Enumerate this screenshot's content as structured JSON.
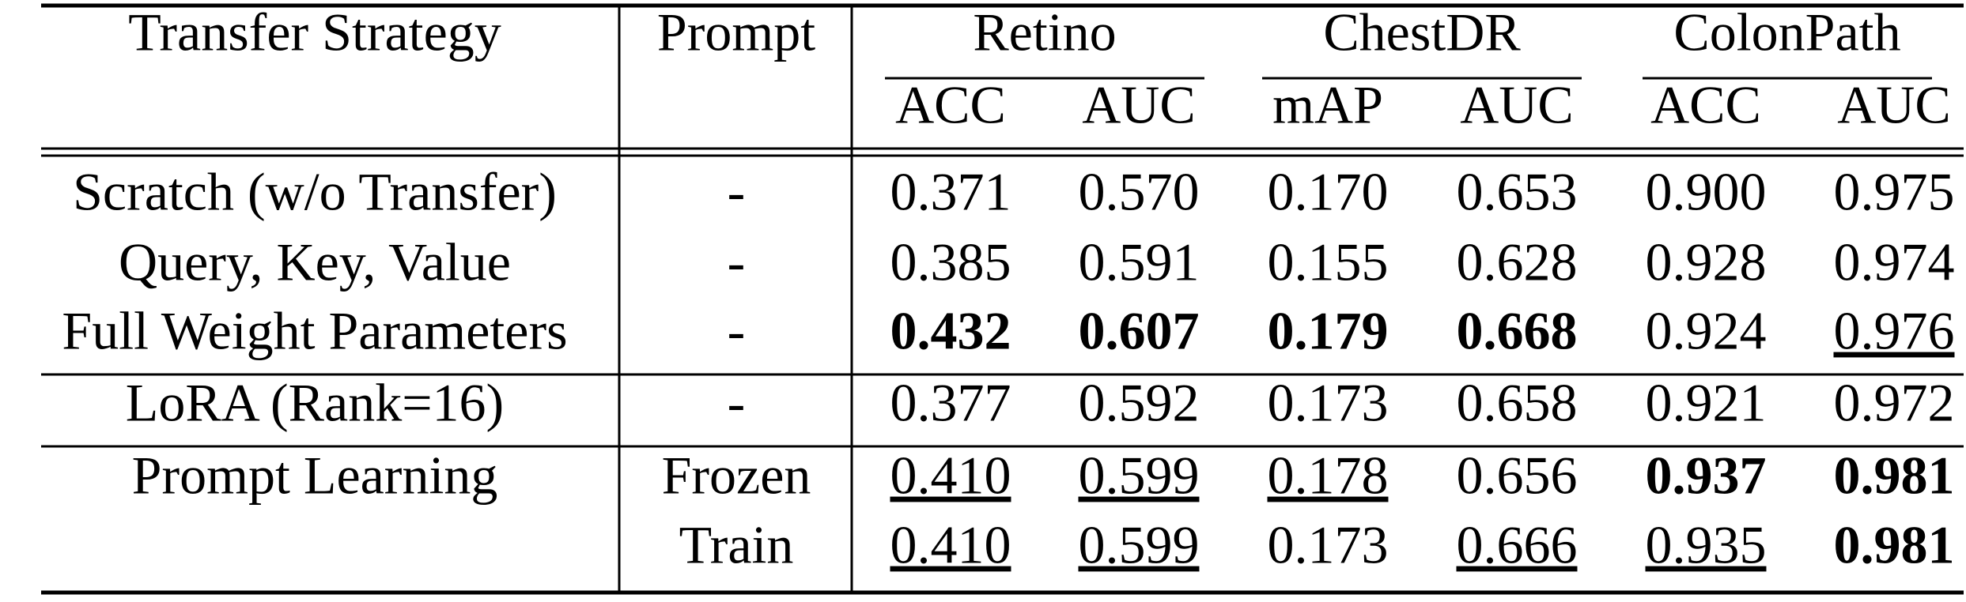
{
  "table": {
    "columns": [
      "Transfer Strategy",
      "Prompt"
    ],
    "groups": [
      {
        "name": "Retino",
        "metrics": [
          "ACC",
          "AUC"
        ]
      },
      {
        "name": "ChestDR",
        "metrics": [
          "mAP",
          "AUC"
        ]
      },
      {
        "name": "ColonPath",
        "metrics": [
          "ACC",
          "AUC"
        ]
      }
    ],
    "sections": [
      [
        {
          "strategy": "Scratch (w/o Transfer)",
          "prompt": "-",
          "values": [
            {
              "text": "0.371"
            },
            {
              "text": "0.570"
            },
            {
              "text": "0.170"
            },
            {
              "text": "0.653"
            },
            {
              "text": "0.900"
            },
            {
              "text": "0.975"
            }
          ]
        },
        {
          "strategy": "Query, Key, Value",
          "prompt": "-",
          "values": [
            {
              "text": "0.385"
            },
            {
              "text": "0.591"
            },
            {
              "text": "0.155"
            },
            {
              "text": "0.628"
            },
            {
              "text": "0.928"
            },
            {
              "text": "0.974"
            }
          ]
        },
        {
          "strategy": "Full Weight Parameters",
          "prompt": "-",
          "values": [
            {
              "text": "0.432",
              "style": "bold"
            },
            {
              "text": "0.607",
              "style": "bold"
            },
            {
              "text": "0.179",
              "style": "bold"
            },
            {
              "text": "0.668",
              "style": "bold"
            },
            {
              "text": "0.924"
            },
            {
              "text": "0.976",
              "style": "underline"
            }
          ]
        }
      ],
      [
        {
          "strategy": "LoRA (Rank=16)",
          "prompt": "-",
          "values": [
            {
              "text": "0.377"
            },
            {
              "text": "0.592"
            },
            {
              "text": "0.173"
            },
            {
              "text": "0.658"
            },
            {
              "text": "0.921"
            },
            {
              "text": "0.972"
            }
          ]
        }
      ],
      [
        {
          "strategy": "Prompt Learning",
          "prompt": "Frozen",
          "values": [
            {
              "text": "0.410",
              "style": "underline"
            },
            {
              "text": "0.599",
              "style": "underline"
            },
            {
              "text": "0.178",
              "style": "underline"
            },
            {
              "text": "0.656"
            },
            {
              "text": "0.937",
              "style": "bold"
            },
            {
              "text": "0.981",
              "style": "bold"
            }
          ]
        },
        {
          "prompt": "Train",
          "values": [
            {
              "text": "0.410",
              "style": "underline"
            },
            {
              "text": "0.599",
              "style": "underline"
            },
            {
              "text": "0.173"
            },
            {
              "text": "0.666",
              "style": "underline"
            },
            {
              "text": "0.935",
              "style": "underline"
            },
            {
              "text": "0.981",
              "style": "bold"
            }
          ]
        }
      ]
    ]
  }
}
